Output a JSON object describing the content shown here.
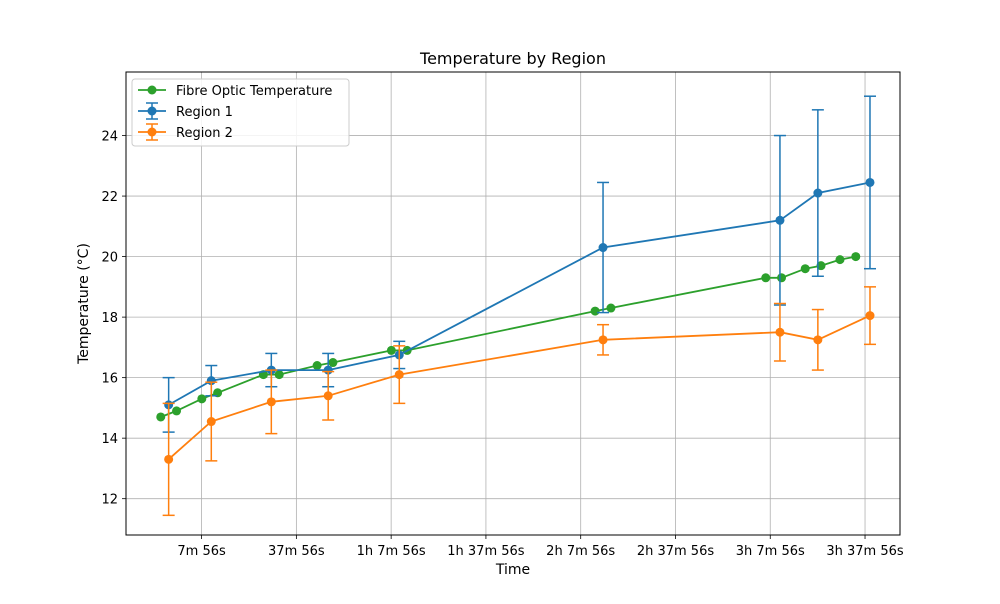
{
  "chart_data": {
    "type": "line",
    "title": "Temperature by Region",
    "xlabel": "Time",
    "ylabel": "Temperature (°C)",
    "x_unit": "minutes",
    "xlim": [
      -16,
      229
    ],
    "ylim": [
      10.8,
      26.1
    ],
    "grid": true,
    "legend_position": "top-left",
    "x_ticks": [
      {
        "value": 7.93,
        "label": "7m 56s"
      },
      {
        "value": 37.93,
        "label": "37m 56s"
      },
      {
        "value": 67.93,
        "label": "1h 7m 56s"
      },
      {
        "value": 97.93,
        "label": "1h 37m 56s"
      },
      {
        "value": 127.93,
        "label": "2h 7m 56s"
      },
      {
        "value": 157.93,
        "label": "2h 37m 56s"
      },
      {
        "value": 187.93,
        "label": "3h 7m 56s"
      },
      {
        "value": 217.93,
        "label": "3h 37m 56s"
      }
    ],
    "y_ticks": [
      12,
      14,
      16,
      18,
      20,
      22,
      24
    ],
    "series": [
      {
        "name": "Fibre Optic Temperature",
        "color": "#2ca02c",
        "x": [
          -5,
          0,
          8,
          13,
          27.5,
          32.5,
          44.5,
          49.5,
          68,
          73,
          132.5,
          137.5,
          186.5,
          191.5,
          199,
          204,
          210,
          215
        ],
        "y": [
          14.7,
          14.9,
          15.3,
          15.5,
          16.1,
          16.1,
          16.4,
          16.5,
          16.9,
          16.9,
          18.2,
          18.3,
          19.3,
          19.3,
          19.6,
          19.7,
          19.9,
          20.0
        ]
      },
      {
        "name": "Region 1",
        "color": "#1f77b4",
        "x": [
          -2.5,
          11,
          30,
          48,
          70.5,
          135,
          191,
          203,
          219.5
        ],
        "y": [
          15.1,
          15.9,
          16.25,
          16.25,
          16.75,
          20.3,
          21.2,
          22.1,
          22.45
        ],
        "error": [
          0.9,
          0.5,
          0.55,
          0.55,
          0.45,
          2.15,
          2.8,
          2.75,
          2.85
        ]
      },
      {
        "name": "Region 2",
        "color": "#ff7f0e",
        "x": [
          -2.5,
          11,
          30,
          48,
          70.5,
          135,
          191,
          203,
          219.5
        ],
        "y": [
          13.3,
          14.55,
          15.2,
          15.4,
          16.1,
          17.25,
          17.5,
          17.25,
          18.05
        ],
        "error": [
          1.85,
          1.3,
          1.05,
          0.8,
          0.95,
          0.5,
          0.95,
          1.0,
          0.95
        ]
      }
    ]
  }
}
